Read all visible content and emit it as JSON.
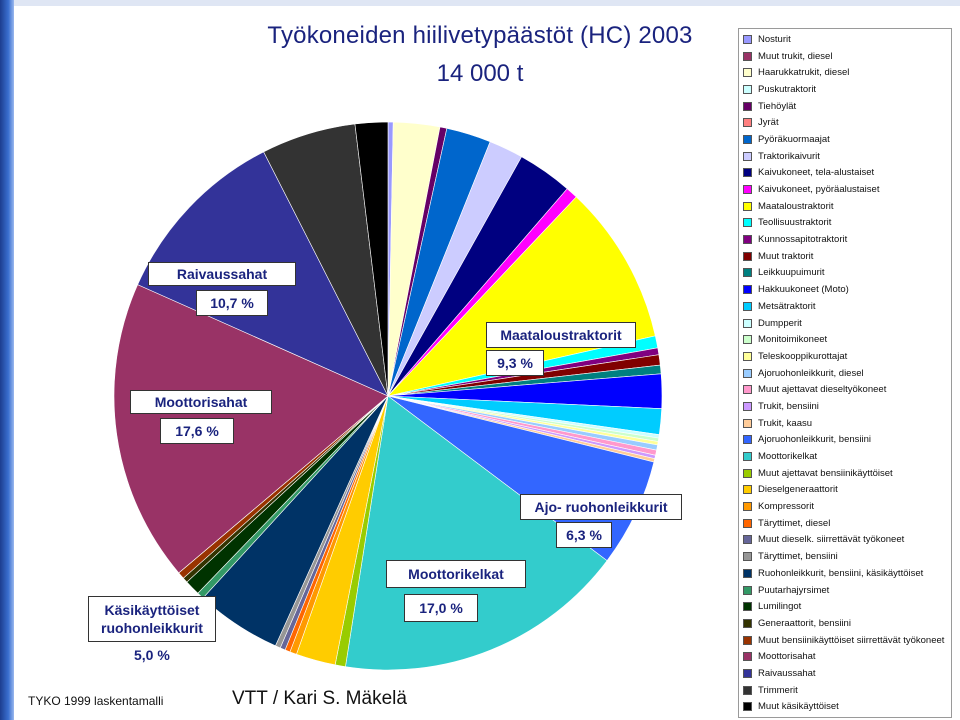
{
  "title": "Työkoneiden hiilivetypäästöt (HC) 2003",
  "subtitle": "14 000 t",
  "footer_source": "TYKO 1999 laskentamalli",
  "footer_author": "VTT / Kari S. Mäkelä",
  "chart_data": {
    "type": "pie",
    "unit": "%",
    "slices": [
      {
        "name": "Nosturit",
        "value": 0.3,
        "color": "#9999ff"
      },
      {
        "name": "Muut trukit, diesel",
        "value": 0.0,
        "color": "#993366"
      },
      {
        "name": "Haarukkatrukit, diesel",
        "value": 2.7,
        "color": "#ffffcc"
      },
      {
        "name": "Puskutraktorit",
        "value": 0.0,
        "color": "#ccffff"
      },
      {
        "name": "Tiehöylät",
        "value": 0.4,
        "color": "#660066"
      },
      {
        "name": "Jyrät",
        "value": 0.0,
        "color": "#ff8080"
      },
      {
        "name": "Pyöräkuormaajat",
        "value": 2.6,
        "color": "#0066cc"
      },
      {
        "name": "Traktorikaivurit",
        "value": 2.0,
        "color": "#ccccff"
      },
      {
        "name": "Kaivukoneet, tela-alustaiset",
        "value": 3.2,
        "color": "#000080"
      },
      {
        "name": "Kaivukoneet, pyöräalustaiset",
        "value": 0.7,
        "color": "#ff00ff"
      },
      {
        "name": "Maataloustraktorit",
        "value": 9.3,
        "color": "#ffff00"
      },
      {
        "name": "Teollisuustraktorit",
        "value": 0.7,
        "color": "#00ffff"
      },
      {
        "name": "Kunnossapitotraktorit",
        "value": 0.4,
        "color": "#800080"
      },
      {
        "name": "Muut traktorit",
        "value": 0.6,
        "color": "#800000"
      },
      {
        "name": "Leikkuupuimurit",
        "value": 0.5,
        "color": "#008080"
      },
      {
        "name": "Hakkuukoneet (Moto)",
        "value": 2.0,
        "color": "#0000ff"
      },
      {
        "name": "Metsätraktorit",
        "value": 1.5,
        "color": "#00ccff"
      },
      {
        "name": "Dumpperit",
        "value": 0.2,
        "color": "#ccffff"
      },
      {
        "name": "Monitoimikoneet",
        "value": 0.2,
        "color": "#ccffcc"
      },
      {
        "name": "Teleskooppikurottajat",
        "value": 0.2,
        "color": "#ffff99"
      },
      {
        "name": "Ajoruohonleikkurit, diesel",
        "value": 0.3,
        "color": "#99ccff"
      },
      {
        "name": "Muut ajettavat dieseltyökoneet",
        "value": 0.3,
        "color": "#ff99cc"
      },
      {
        "name": "Trukit, bensiini",
        "value": 0.2,
        "color": "#cc99ff"
      },
      {
        "name": "Trukit, kaasu",
        "value": 0.2,
        "color": "#ffcc99"
      },
      {
        "name": "Ajoruohonleikkurit, bensiini",
        "value": 6.3,
        "color": "#3366ff"
      },
      {
        "name": "Moottorikelkat",
        "value": 17.0,
        "color": "#33cccc"
      },
      {
        "name": "Muut ajettavat bensiinikäyttöiset",
        "value": 0.6,
        "color": "#99cc00"
      },
      {
        "name": "Dieselgeneraattorit",
        "value": 2.3,
        "color": "#ffcc00"
      },
      {
        "name": "Kompressorit",
        "value": 0.4,
        "color": "#ff9900"
      },
      {
        "name": "Täryttimet, diesel",
        "value": 0.3,
        "color": "#ff6600"
      },
      {
        "name": "Muut dieselk. siirrettävät työkoneet",
        "value": 0.3,
        "color": "#666699"
      },
      {
        "name": "Täryttimet, bensiini",
        "value": 0.3,
        "color": "#969696"
      },
      {
        "name": "Ruohonleikkurit, bensiini, käsikäyttöiset",
        "value": 5.0,
        "color": "#003366"
      },
      {
        "name": "Puutarhajyrsimet",
        "value": 0.4,
        "color": "#339966"
      },
      {
        "name": "Lumilingot",
        "value": 0.9,
        "color": "#003300"
      },
      {
        "name": "Generaattorit, bensiini",
        "value": 0.3,
        "color": "#333300"
      },
      {
        "name": "Muut bensiinikäyttöiset siirrettävät työkoneet",
        "value": 0.4,
        "color": "#993300"
      },
      {
        "name": "Moottorisahat",
        "value": 17.6,
        "color": "#993366"
      },
      {
        "name": "Raivaussahat",
        "value": 10.7,
        "color": "#333399"
      },
      {
        "name": "Trimmerit",
        "value": 5.5,
        "color": "#333333"
      },
      {
        "name": "Muut käsikäyttöiset",
        "value": 1.9,
        "color": "#000000"
      }
    ],
    "callouts": [
      {
        "series": "Raivaussahat",
        "label": "Raivaussahat",
        "value_text": "10,7 %"
      },
      {
        "series": "Maataloustraktorit",
        "label": "Maataloustraktorit",
        "value_text": "9,3 %"
      },
      {
        "series": "Moottorisahat",
        "label": "Moottorisahat",
        "value_text": "17,6 %"
      },
      {
        "series": "Ajoruohonleikkurit, bensiini",
        "label": "Ajo- ruohonleikkurit",
        "value_text": "6,3 %"
      },
      {
        "series": "Moottorikelkat",
        "label": "Moottorikelkat",
        "value_text": "17,0 %"
      },
      {
        "series": "Ruohonleikkurit, bensiini, käsikäyttöiset",
        "label": "Käsikäyttöiset ruohonleikkurit",
        "value_text": "5,0 %"
      }
    ]
  }
}
